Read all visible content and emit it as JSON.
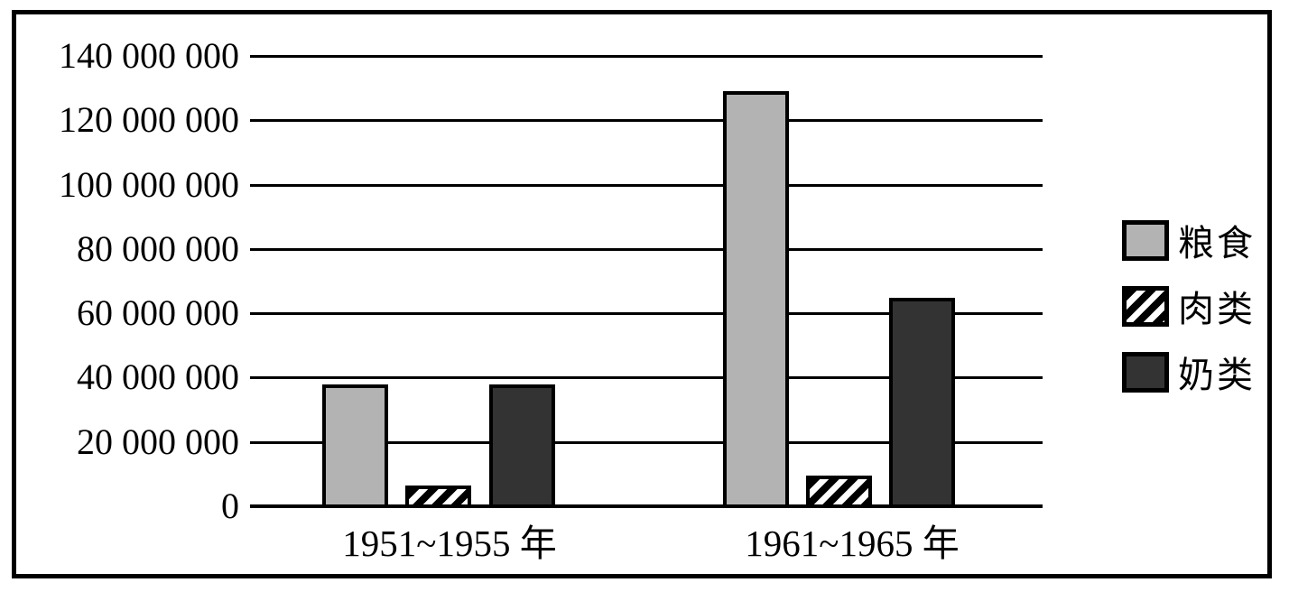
{
  "chart_data": {
    "type": "bar",
    "title": "",
    "xlabel": "",
    "ylabel": "",
    "categories": [
      "1951~1955 年",
      "1961~1965 年"
    ],
    "series": [
      {
        "name": "粮食",
        "values": [
          38500000,
          129500000
        ],
        "style": "light-gray",
        "color": "#b3b3b3"
      },
      {
        "name": "肉类",
        "values": [
          7000000,
          10000000
        ],
        "style": "diagonal-hatch",
        "color": "#000000"
      },
      {
        "name": "奶类",
        "values": [
          38500000,
          65500000
        ],
        "style": "dark-gray",
        "color": "#333333"
      }
    ],
    "ylim": [
      0,
      140000000
    ],
    "y_ticks": [
      0,
      20000000,
      40000000,
      60000000,
      80000000,
      100000000,
      120000000,
      140000000
    ],
    "y_tick_labels": [
      "0",
      "20 000 000",
      "40 000 000",
      "60 000 000",
      "80 000 000",
      "100 000 000",
      "120 000 000",
      "140 000 000"
    ],
    "grid": true,
    "legend_position": "right",
    "legend": [
      {
        "label": "粮食",
        "swatch": "light-gray-square"
      },
      {
        "label": "肉类",
        "swatch": "diagonal-hatch-square"
      },
      {
        "label": "奶类",
        "swatch": "dark-gray-square"
      }
    ]
  },
  "colors": {
    "frame_border": "#000000",
    "grain_fill": "#b3b3b3",
    "milk_fill": "#333333",
    "hatch_stripe": "#000000",
    "background": "#ffffff"
  }
}
